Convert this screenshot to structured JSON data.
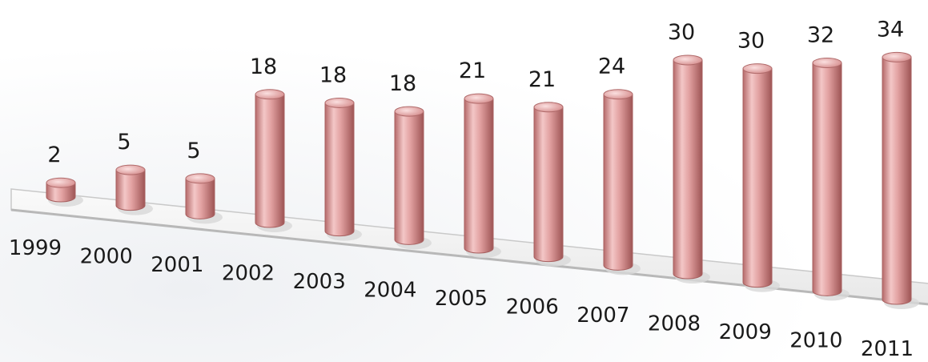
{
  "chart_data": {
    "type": "bar",
    "style": "3d-cylinder",
    "categories": [
      "1999",
      "2000",
      "2001",
      "2002",
      "2003",
      "2004",
      "2005",
      "2006",
      "2007",
      "2008",
      "2009",
      "2010",
      "2011"
    ],
    "values": [
      2,
      5,
      5,
      18,
      18,
      18,
      21,
      21,
      24,
      30,
      30,
      32,
      34
    ],
    "data_labels": [
      "2",
      "5",
      "5",
      "18",
      "18",
      "18",
      "21",
      "21",
      "24",
      "30",
      "30",
      "32",
      "34"
    ],
    "title": "",
    "xlabel": "",
    "ylabel": "",
    "ylim": [
      0,
      35
    ],
    "grid": false,
    "legend": "none",
    "colors": {
      "bar_body": "#d98c8c",
      "bar_light": "#f6d2d2",
      "bar_dark": "#a45a5a",
      "floor": "#f4f4f4",
      "floor_edge": "#c9c9c9",
      "text": "#1a1a1a"
    }
  }
}
